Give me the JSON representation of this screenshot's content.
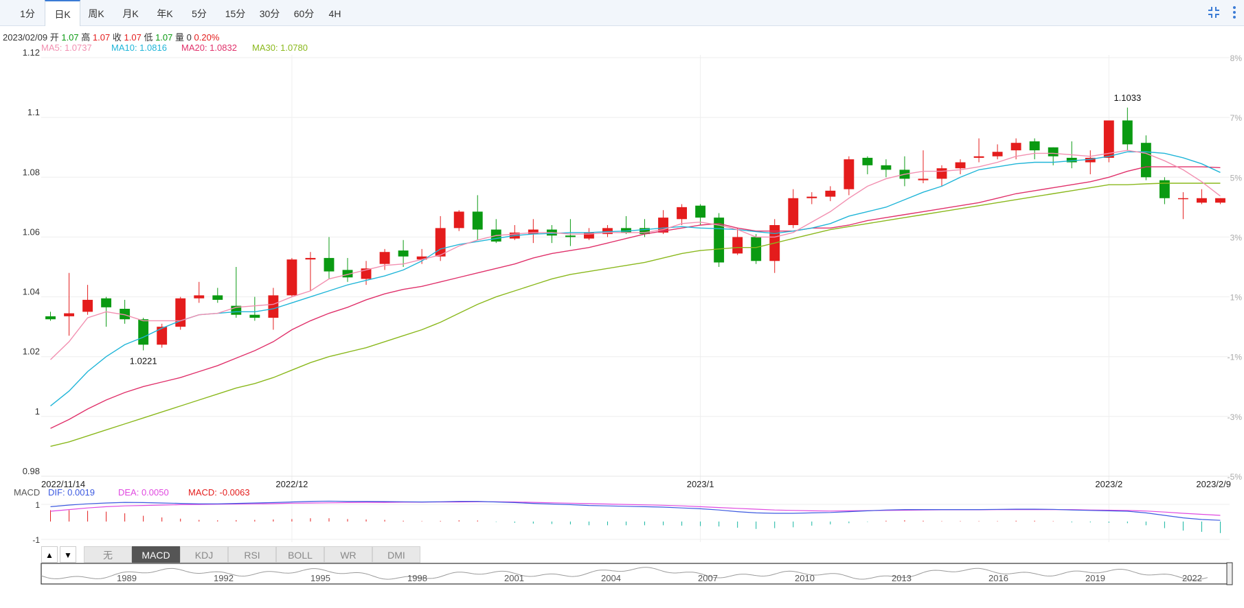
{
  "period_tabs": [
    "1分",
    "日K",
    "周K",
    "月K",
    "年K",
    "5分",
    "15分",
    "30分",
    "60分",
    "4H"
  ],
  "active_tab": "日K",
  "info": {
    "date": "2023/02/09",
    "open_label": "开",
    "open": "1.07",
    "high_label": "高",
    "high": "1.07",
    "close_label": "收",
    "close": "1.07",
    "low_label": "低",
    "low": "1.07",
    "vol_label": "量",
    "vol": "0",
    "change": "0.20%"
  },
  "ma_labels": {
    "ma5": "MA5: 1.0737",
    "ma10": "MA10: 1.0816",
    "ma20": "MA20: 1.0832",
    "ma30": "MA30: 1.0780"
  },
  "macd_labels": {
    "name": "MACD",
    "dif": "DIF: 0.0019",
    "dea": "DEA: 0.0050",
    "macd": "MACD: -0.0063"
  },
  "indicator_tabs": [
    "无",
    "MACD",
    "KDJ",
    "RSI",
    "BOLL",
    "WR",
    "DMI"
  ],
  "active_indicator": "MACD",
  "overview_years": [
    "1989",
    "1992",
    "1995",
    "1998",
    "2001",
    "2004",
    "2007",
    "2010",
    "2013",
    "2016",
    "2019",
    "2022"
  ],
  "colors": {
    "up": "#e41c1c",
    "down": "#0a9a12",
    "ma5": "#f28fb0",
    "ma10": "#1fb5d8",
    "ma20": "#e0306a",
    "ma30": "#8ab81c",
    "dif": "#3b59e0",
    "dea": "#e048e0"
  },
  "chart_data": {
    "type": "candlestick",
    "y_ticks": [
      "1.12",
      "1.1",
      "1.08",
      "1.06",
      "1.04",
      "1.02",
      "1",
      "0.98"
    ],
    "y_tick_values": [
      1.12,
      1.1,
      1.08,
      1.06,
      1.04,
      1.02,
      1.0,
      0.98
    ],
    "ylim": [
      0.98,
      1.12
    ],
    "right_axis_ticks": [
      "8%",
      "7%",
      "5%",
      "3%",
      "1%",
      "-1%",
      "-3%",
      "-5%"
    ],
    "x_labels": [
      {
        "label": "2022/11/14",
        "index": 0
      },
      {
        "label": "2022/12",
        "index": 13
      },
      {
        "label": "2023/1",
        "index": 35
      },
      {
        "label": "2023/2",
        "index": 57
      },
      {
        "label": "2023/2/9",
        "index": 64
      }
    ],
    "annotations": [
      {
        "text": "1.0221",
        "index": 5,
        "value": 1.0221,
        "pos": "below"
      },
      {
        "text": "1.1033",
        "index": 58,
        "value": 1.1033,
        "pos": "above"
      }
    ],
    "candles": [
      [
        1.0335,
        1.0325,
        1.035,
        1.032
      ],
      [
        1.0335,
        1.0345,
        1.048,
        1.027
      ],
      [
        1.035,
        1.039,
        1.044,
        1.034
      ],
      [
        1.0395,
        1.0365,
        1.04,
        1.03
      ],
      [
        1.036,
        1.0325,
        1.039,
        1.031
      ],
      [
        1.0325,
        1.024,
        1.033,
        1.0221
      ],
      [
        1.024,
        1.03,
        1.031,
        1.023
      ],
      [
        1.03,
        1.0395,
        1.04,
        1.029
      ],
      [
        1.0395,
        1.0405,
        1.045,
        1.038
      ],
      [
        1.0405,
        1.039,
        1.043,
        1.038
      ],
      [
        1.037,
        1.034,
        1.05,
        1.033
      ],
      [
        1.034,
        1.033,
        1.04,
        1.032
      ],
      [
        1.033,
        1.0405,
        1.043,
        1.029
      ],
      [
        1.0405,
        1.0525,
        1.053,
        1.04
      ],
      [
        1.0525,
        1.053,
        1.055,
        1.042
      ],
      [
        1.053,
        1.0485,
        1.06,
        1.046
      ],
      [
        1.049,
        1.0465,
        1.053,
        1.045
      ],
      [
        1.046,
        1.0495,
        1.052,
        1.044
      ],
      [
        1.051,
        1.055,
        1.056,
        1.049
      ],
      [
        1.0555,
        1.0535,
        1.059,
        1.05
      ],
      [
        1.0525,
        1.0535,
        1.056,
        1.051
      ],
      [
        1.0535,
        1.063,
        1.067,
        1.052
      ],
      [
        1.063,
        1.0685,
        1.069,
        1.062
      ],
      [
        1.0685,
        1.0625,
        1.074,
        1.059
      ],
      [
        1.0625,
        1.0585,
        1.066,
        1.058
      ],
      [
        1.0595,
        1.0615,
        1.064,
        1.059
      ],
      [
        1.061,
        1.0625,
        1.066,
        1.058
      ],
      [
        1.0625,
        1.0605,
        1.064,
        1.058
      ],
      [
        1.0605,
        1.06,
        1.066,
        1.057
      ],
      [
        1.0595,
        1.0615,
        1.063,
        1.059
      ],
      [
        1.061,
        1.063,
        1.064,
        1.06
      ],
      [
        1.063,
        1.0615,
        1.067,
        1.061
      ],
      [
        1.063,
        1.061,
        1.066,
        1.06
      ],
      [
        1.0615,
        1.0665,
        1.069,
        1.061
      ],
      [
        1.066,
        1.07,
        1.071,
        1.064
      ],
      [
        1.0705,
        1.0665,
        1.071,
        1.064
      ],
      [
        1.0665,
        1.0515,
        1.068,
        1.05
      ],
      [
        1.0545,
        1.06,
        1.063,
        1.054
      ],
      [
        1.06,
        1.052,
        1.061,
        1.051
      ],
      [
        1.052,
        1.064,
        1.066,
        1.048
      ],
      [
        1.064,
        1.073,
        1.076,
        1.063
      ],
      [
        1.073,
        1.0735,
        1.075,
        1.071
      ],
      [
        1.0735,
        1.0755,
        1.077,
        1.072
      ],
      [
        1.076,
        1.086,
        1.087,
        1.074
      ],
      [
        1.0865,
        1.084,
        1.087,
        1.081
      ],
      [
        1.084,
        1.0825,
        1.086,
        1.08
      ],
      [
        1.0825,
        1.0795,
        1.087,
        1.077
      ],
      [
        1.079,
        1.0795,
        1.089,
        1.078
      ],
      [
        1.0795,
        1.083,
        1.084,
        1.077
      ],
      [
        1.083,
        1.085,
        1.086,
        1.081
      ],
      [
        1.0865,
        1.087,
        1.093,
        1.085
      ],
      [
        1.087,
        1.0885,
        1.091,
        1.086
      ],
      [
        1.089,
        1.0915,
        1.093,
        1.086
      ],
      [
        1.092,
        1.089,
        1.093,
        1.086
      ],
      [
        1.09,
        1.087,
        1.09,
        1.084
      ],
      [
        1.0865,
        1.085,
        1.092,
        1.083
      ],
      [
        1.085,
        1.0865,
        1.089,
        1.081
      ],
      [
        1.0865,
        1.099,
        1.099,
        1.085
      ],
      [
        1.099,
        1.091,
        1.1033,
        1.089
      ],
      [
        1.0915,
        1.08,
        1.094,
        1.079
      ],
      [
        1.079,
        1.073,
        1.08,
        1.071
      ],
      [
        1.073,
        1.073,
        1.075,
        1.066
      ],
      [
        1.0715,
        1.073,
        1.076,
        1.071
      ],
      [
        1.0715,
        1.073,
        1.073,
        1.071
      ]
    ],
    "ma5": [
      1.019,
      1.025,
      1.033,
      1.035,
      1.034,
      1.032,
      1.032,
      1.032,
      1.034,
      1.0345,
      1.0365,
      1.037,
      1.0375,
      1.04,
      1.042,
      1.046,
      1.0475,
      1.049,
      1.0505,
      1.051,
      1.0525,
      1.054,
      1.057,
      1.059,
      1.0605,
      1.061,
      1.0615,
      1.0615,
      1.061,
      1.061,
      1.0615,
      1.0615,
      1.0615,
      1.0625,
      1.0645,
      1.065,
      1.064,
      1.0625,
      1.06,
      1.06,
      1.0615,
      1.065,
      1.0685,
      1.073,
      1.077,
      1.0795,
      1.081,
      1.082,
      1.082,
      1.0825,
      1.0835,
      1.085,
      1.087,
      1.088,
      1.088,
      1.0875,
      1.087,
      1.088,
      1.089,
      1.088,
      1.0855,
      1.0825,
      1.0785,
      1.0737
    ],
    "ma10": [
      1.0035,
      1.0085,
      1.015,
      1.02,
      1.024,
      1.0265,
      1.0295,
      1.032,
      1.034,
      1.0345,
      1.035,
      1.035,
      1.036,
      1.038,
      1.04,
      1.042,
      1.044,
      1.0455,
      1.047,
      1.049,
      1.052,
      1.056,
      1.0575,
      1.0585,
      1.0595,
      1.0605,
      1.061,
      1.0612,
      1.0615,
      1.0615,
      1.0618,
      1.062,
      1.0625,
      1.063,
      1.0635,
      1.063,
      1.0628,
      1.0625,
      1.0618,
      1.0612,
      1.062,
      1.063,
      1.0645,
      1.067,
      1.0685,
      1.07,
      1.0725,
      1.075,
      1.077,
      1.08,
      1.0825,
      1.0835,
      1.0845,
      1.085,
      1.085,
      1.0855,
      1.086,
      1.087,
      1.0885,
      1.0885,
      1.088,
      1.0865,
      1.0845,
      1.0816
    ],
    "ma20": [
      0.996,
      0.999,
      1.0025,
      1.0055,
      1.008,
      1.01,
      1.0115,
      1.013,
      1.015,
      1.017,
      1.0195,
      1.022,
      1.025,
      1.029,
      1.032,
      1.0345,
      1.0365,
      1.039,
      1.041,
      1.0425,
      1.0435,
      1.045,
      1.0465,
      1.048,
      1.0495,
      1.051,
      1.053,
      1.0545,
      1.0555,
      1.0565,
      1.058,
      1.0595,
      1.061,
      1.062,
      1.063,
      1.064,
      1.0645,
      1.063,
      1.062,
      1.062,
      1.062,
      1.063,
      1.063,
      1.064,
      1.0655,
      1.0665,
      1.0675,
      1.0685,
      1.0695,
      1.0705,
      1.0715,
      1.073,
      1.0745,
      1.0755,
      1.0765,
      1.0775,
      1.0785,
      1.08,
      1.082,
      1.0835,
      1.0835,
      1.0835,
      1.0835,
      1.0832
    ],
    "ma30": [
      0.99,
      0.9915,
      0.9935,
      0.9955,
      0.9975,
      0.9995,
      1.0015,
      1.0035,
      1.0055,
      1.0075,
      1.0095,
      1.011,
      1.013,
      1.0155,
      1.018,
      1.02,
      1.0215,
      1.023,
      1.025,
      1.027,
      1.029,
      1.0315,
      1.0345,
      1.0375,
      1.04,
      1.042,
      1.044,
      1.046,
      1.0475,
      1.0485,
      1.0495,
      1.0505,
      1.0515,
      1.053,
      1.0545,
      1.0555,
      1.056,
      1.0565,
      1.0565,
      1.058,
      1.0595,
      1.061,
      1.0625,
      1.0635,
      1.0645,
      1.0655,
      1.0665,
      1.0675,
      1.0685,
      1.0695,
      1.0705,
      1.0715,
      1.0725,
      1.0735,
      1.0745,
      1.0755,
      1.0765,
      1.0775,
      1.0775,
      1.0778,
      1.078,
      1.078,
      1.078,
      1.078
    ],
    "macd_axis": [
      "1",
      "-1"
    ],
    "macd_ylim": [
      -1.0,
      1.0
    ],
    "dif": [
      0.72,
      0.8,
      0.86,
      0.9,
      0.93,
      0.92,
      0.9,
      0.88,
      0.86,
      0.86,
      0.88,
      0.9,
      0.92,
      0.95,
      0.98,
      0.99,
      0.98,
      0.98,
      0.97,
      0.96,
      0.95,
      0.96,
      0.98,
      0.98,
      0.95,
      0.92,
      0.88,
      0.85,
      0.82,
      0.78,
      0.76,
      0.74,
      0.72,
      0.7,
      0.66,
      0.62,
      0.56,
      0.48,
      0.42,
      0.4,
      0.4,
      0.42,
      0.44,
      0.48,
      0.52,
      0.56,
      0.58,
      0.58,
      0.58,
      0.58,
      0.58,
      0.59,
      0.6,
      0.6,
      0.59,
      0.56,
      0.54,
      0.52,
      0.5,
      0.42,
      0.3,
      0.18,
      0.1,
      0.06
    ],
    "dea": [
      0.5,
      0.58,
      0.66,
      0.72,
      0.76,
      0.78,
      0.8,
      0.82,
      0.83,
      0.84,
      0.85,
      0.86,
      0.87,
      0.89,
      0.9,
      0.91,
      0.92,
      0.93,
      0.93,
      0.94,
      0.94,
      0.95,
      0.95,
      0.96,
      0.96,
      0.95,
      0.93,
      0.91,
      0.89,
      0.87,
      0.85,
      0.83,
      0.81,
      0.79,
      0.76,
      0.72,
      0.68,
      0.64,
      0.6,
      0.56,
      0.54,
      0.52,
      0.51,
      0.52,
      0.53,
      0.54,
      0.55,
      0.56,
      0.57,
      0.57,
      0.57,
      0.58,
      0.58,
      0.58,
      0.58,
      0.58,
      0.56,
      0.55,
      0.54,
      0.51,
      0.46,
      0.4,
      0.35,
      0.3
    ],
    "macd_hist": [
      0.55,
      0.55,
      0.52,
      0.48,
      0.4,
      0.28,
      0.2,
      0.14,
      0.08,
      0.06,
      0.07,
      0.08,
      0.1,
      0.12,
      0.16,
      0.16,
      0.12,
      0.1,
      0.08,
      0.04,
      0.02,
      0.03,
      0.06,
      0.05,
      -0.02,
      -0.06,
      -0.1,
      -0.12,
      -0.14,
      -0.18,
      -0.18,
      -0.18,
      -0.18,
      -0.18,
      -0.2,
      -0.22,
      -0.24,
      -0.3,
      -0.36,
      -0.32,
      -0.28,
      -0.2,
      -0.14,
      -0.08,
      -0.02,
      0.04,
      0.06,
      0.04,
      0.02,
      0.02,
      0.02,
      0.02,
      0.04,
      0.04,
      0.02,
      -0.04,
      -0.04,
      -0.06,
      -0.08,
      -0.18,
      -0.32,
      -0.44,
      -0.5,
      -0.56
    ]
  }
}
